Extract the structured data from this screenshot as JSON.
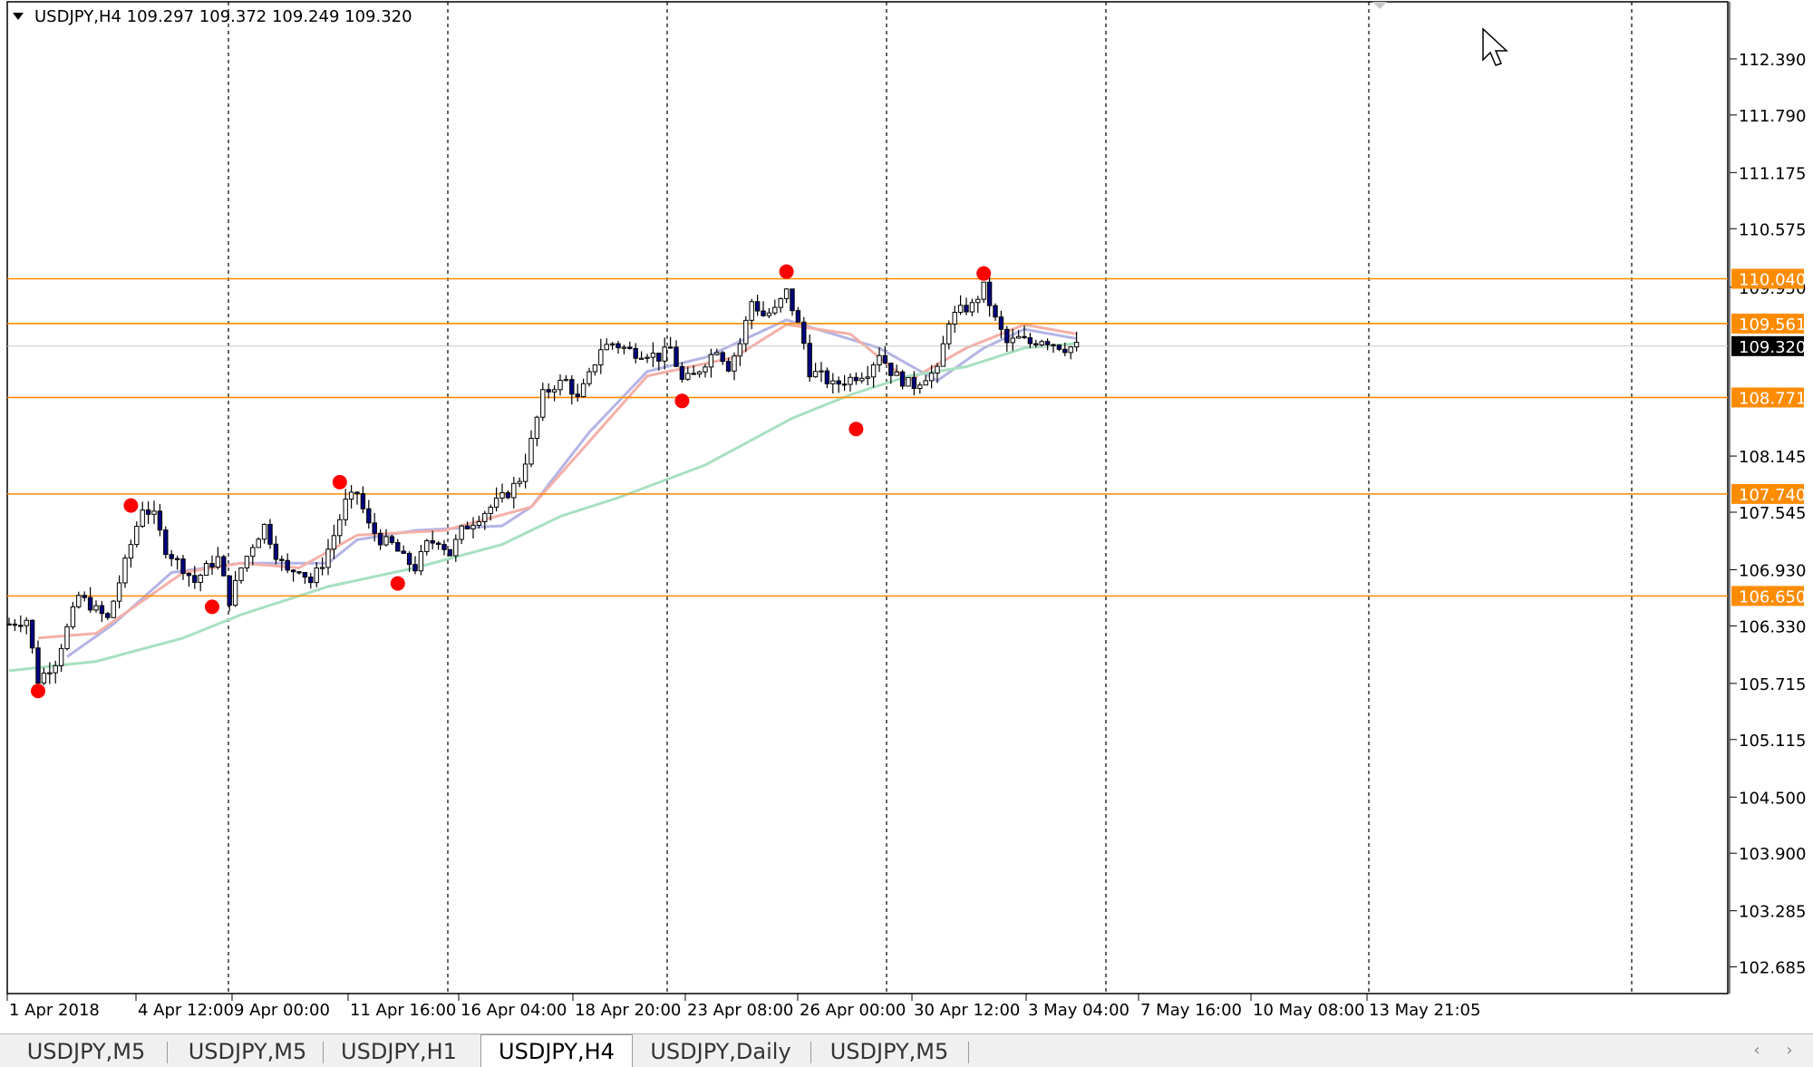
{
  "chart_data": {
    "type": "candlestick",
    "symbol": "USDJPY",
    "timeframe": "H4",
    "header": "USDJPY,H4  109.297 109.372 109.249 109.320",
    "ohlc_last": {
      "open": 109.297,
      "high": 109.372,
      "low": 109.249,
      "close": 109.32
    },
    "ylim": [
      102.4,
      113.0
    ],
    "y_ticks": [
      "112.390",
      "111.790",
      "111.175",
      "110.575",
      "109.950",
      "108.145",
      "107.545",
      "106.930",
      "106.330",
      "105.715",
      "105.115",
      "104.500",
      "103.900",
      "103.285",
      "102.685"
    ],
    "x_ticks": [
      "1 Apr 2018",
      "4 Apr 12:00",
      "9 Apr 00:00",
      "11 Apr 16:00",
      "16 Apr 04:00",
      "18 Apr 20:00",
      "23 Apr 08:00",
      "26 Apr 00:00",
      "30 Apr 12:00",
      "3 May 04:00",
      "7 May 16:00",
      "10 May 08:00",
      "13 May 21:05"
    ],
    "horizontal_levels": [
      {
        "label": "110.040",
        "value": 110.04,
        "color": "#ff8c00"
      },
      {
        "label": "109.561",
        "value": 109.561,
        "color": "#ff8c00"
      },
      {
        "label": "108.771",
        "value": 108.771,
        "color": "#ff8c00"
      },
      {
        "label": "107.740",
        "value": 107.74,
        "color": "#ff8c00"
      },
      {
        "label": "106.650",
        "value": 106.65,
        "color": "#ff8c00"
      }
    ],
    "current_price": {
      "label": "109.320",
      "value": 109.32
    },
    "close_path": [
      [
        0,
        106.35
      ],
      [
        3,
        106.4
      ],
      [
        5,
        105.75
      ],
      [
        8,
        105.95
      ],
      [
        10,
        106.3
      ],
      [
        12,
        106.65
      ],
      [
        15,
        106.5
      ],
      [
        17,
        106.4
      ],
      [
        19,
        106.8
      ],
      [
        21,
        107.2
      ],
      [
        23,
        107.6
      ],
      [
        25,
        107.5
      ],
      [
        27,
        107.15
      ],
      [
        30,
        106.95
      ],
      [
        32,
        106.8
      ],
      [
        34,
        106.95
      ],
      [
        36,
        107.05
      ],
      [
        38,
        106.6
      ],
      [
        40,
        106.95
      ],
      [
        42,
        107.2
      ],
      [
        44,
        107.4
      ],
      [
        46,
        107.1
      ],
      [
        48,
        106.9
      ],
      [
        50,
        106.95
      ],
      [
        52,
        106.8
      ],
      [
        54,
        107.0
      ],
      [
        56,
        107.3
      ],
      [
        58,
        107.65
      ],
      [
        60,
        107.75
      ],
      [
        62,
        107.4
      ],
      [
        64,
        107.25
      ],
      [
        66,
        107.2
      ],
      [
        68,
        107.05
      ],
      [
        70,
        106.95
      ],
      [
        72,
        107.2
      ],
      [
        74,
        107.25
      ],
      [
        76,
        107.1
      ],
      [
        78,
        107.35
      ],
      [
        80,
        107.45
      ],
      [
        82,
        107.55
      ],
      [
        84,
        107.65
      ],
      [
        86,
        107.75
      ],
      [
        88,
        107.9
      ],
      [
        90,
        108.3
      ],
      [
        92,
        108.8
      ],
      [
        94,
        108.9
      ],
      [
        96,
        108.95
      ],
      [
        98,
        108.75
      ],
      [
        100,
        109.0
      ],
      [
        102,
        109.3
      ],
      [
        104,
        109.35
      ],
      [
        106,
        109.3
      ],
      [
        108,
        109.25
      ],
      [
        110,
        109.25
      ],
      [
        112,
        109.2
      ],
      [
        114,
        109.3
      ],
      [
        116,
        108.95
      ],
      [
        118,
        109.0
      ],
      [
        120,
        109.15
      ],
      [
        122,
        109.3
      ],
      [
        124,
        109.1
      ],
      [
        126,
        109.35
      ],
      [
        128,
        109.8
      ],
      [
        130,
        109.65
      ],
      [
        132,
        109.7
      ],
      [
        134,
        109.9
      ],
      [
        136,
        109.55
      ],
      [
        137,
        109.35
      ],
      [
        138,
        109.05
      ],
      [
        140,
        109.0
      ],
      [
        142,
        108.9
      ],
      [
        144,
        108.95
      ],
      [
        146,
        109.0
      ],
      [
        148,
        109.05
      ],
      [
        150,
        109.25
      ],
      [
        151,
        109.15
      ],
      [
        152,
        109.05
      ],
      [
        154,
        108.95
      ],
      [
        156,
        108.9
      ],
      [
        158,
        109.0
      ],
      [
        160,
        109.05
      ],
      [
        162,
        109.6
      ],
      [
        164,
        109.7
      ],
      [
        166,
        109.75
      ],
      [
        168,
        109.95
      ],
      [
        170,
        109.6
      ],
      [
        172,
        109.35
      ],
      [
        174,
        109.4
      ],
      [
        176,
        109.35
      ],
      [
        178,
        109.4
      ],
      [
        180,
        109.35
      ],
      [
        182,
        109.3
      ],
      [
        184,
        109.32
      ]
    ],
    "moving_averages": [
      {
        "color": "#b4b4e6",
        "points": [
          [
            10,
            106.0
          ],
          [
            18,
            106.35
          ],
          [
            28,
            106.9
          ],
          [
            40,
            107.0
          ],
          [
            55,
            107.0
          ],
          [
            60,
            107.25
          ],
          [
            70,
            107.35
          ],
          [
            85,
            107.4
          ],
          [
            90,
            107.6
          ],
          [
            100,
            108.4
          ],
          [
            110,
            109.05
          ],
          [
            120,
            109.2
          ],
          [
            134,
            109.6
          ],
          [
            150,
            109.3
          ],
          [
            160,
            108.95
          ],
          [
            168,
            109.3
          ],
          [
            175,
            109.5
          ],
          [
            184,
            109.4
          ]
        ]
      },
      {
        "color": "#f4b0a8",
        "points": [
          [
            5,
            106.2
          ],
          [
            15,
            106.25
          ],
          [
            30,
            106.9
          ],
          [
            40,
            107.0
          ],
          [
            50,
            106.95
          ],
          [
            60,
            107.3
          ],
          [
            75,
            107.35
          ],
          [
            90,
            107.6
          ],
          [
            110,
            109.0
          ],
          [
            125,
            109.2
          ],
          [
            134,
            109.55
          ],
          [
            145,
            109.45
          ],
          [
            155,
            108.95
          ],
          [
            165,
            109.3
          ],
          [
            175,
            109.55
          ],
          [
            184,
            109.45
          ]
        ]
      },
      {
        "color": "#a8e0c0",
        "points": [
          [
            0,
            105.85
          ],
          [
            15,
            105.95
          ],
          [
            30,
            106.2
          ],
          [
            40,
            106.45
          ],
          [
            55,
            106.75
          ],
          [
            70,
            106.95
          ],
          [
            85,
            107.2
          ],
          [
            95,
            107.5
          ],
          [
            105,
            107.7
          ],
          [
            120,
            108.05
          ],
          [
            135,
            108.55
          ],
          [
            145,
            108.8
          ],
          [
            155,
            109.0
          ],
          [
            165,
            109.1
          ],
          [
            175,
            109.3
          ],
          [
            184,
            109.35
          ]
        ]
      }
    ],
    "swing_points": [
      {
        "idx": 5,
        "value": 105.75,
        "type": "low"
      },
      {
        "idx": 21,
        "value": 107.5,
        "type": "high"
      },
      {
        "idx": 35,
        "value": 106.65,
        "type": "low"
      },
      {
        "idx": 57,
        "value": 107.75,
        "type": "high"
      },
      {
        "idx": 67,
        "value": 106.9,
        "type": "low"
      },
      {
        "idx": 116,
        "value": 108.85,
        "type": "low"
      },
      {
        "idx": 134,
        "value": 110.0,
        "type": "high"
      },
      {
        "idx": 146,
        "value": 108.55,
        "type": "low"
      },
      {
        "idx": 168,
        "value": 109.98,
        "type": "high"
      }
    ],
    "bars_visible": 185,
    "grid": "vertical dashed",
    "colors": {
      "background": "#ffffff",
      "bull_candle": "#ffffff",
      "bear_candle": "#000080",
      "candle_outline": "#000000",
      "level_line": "#ff8c00",
      "level_label_bg": "#ff8c00",
      "swing_marker": "#ff0000",
      "current_price_bg": "#000000"
    }
  },
  "tabs": [
    {
      "label": "USDJPY,M5",
      "active": false
    },
    {
      "label": "USDJPY,M5",
      "active": false
    },
    {
      "label": "USDJPY,H1",
      "active": false
    },
    {
      "label": "USDJPY,H4",
      "active": true
    },
    {
      "label": "USDJPY,Daily",
      "active": false
    },
    {
      "label": "USDJPY,M5",
      "active": false
    }
  ],
  "icons": {
    "scroll_left": "chevron-left-icon",
    "scroll_right": "chevron-right-icon",
    "mouse_cursor": "mouse-pointer-icon",
    "symbol_dropdown": "triangle-down-icon"
  }
}
